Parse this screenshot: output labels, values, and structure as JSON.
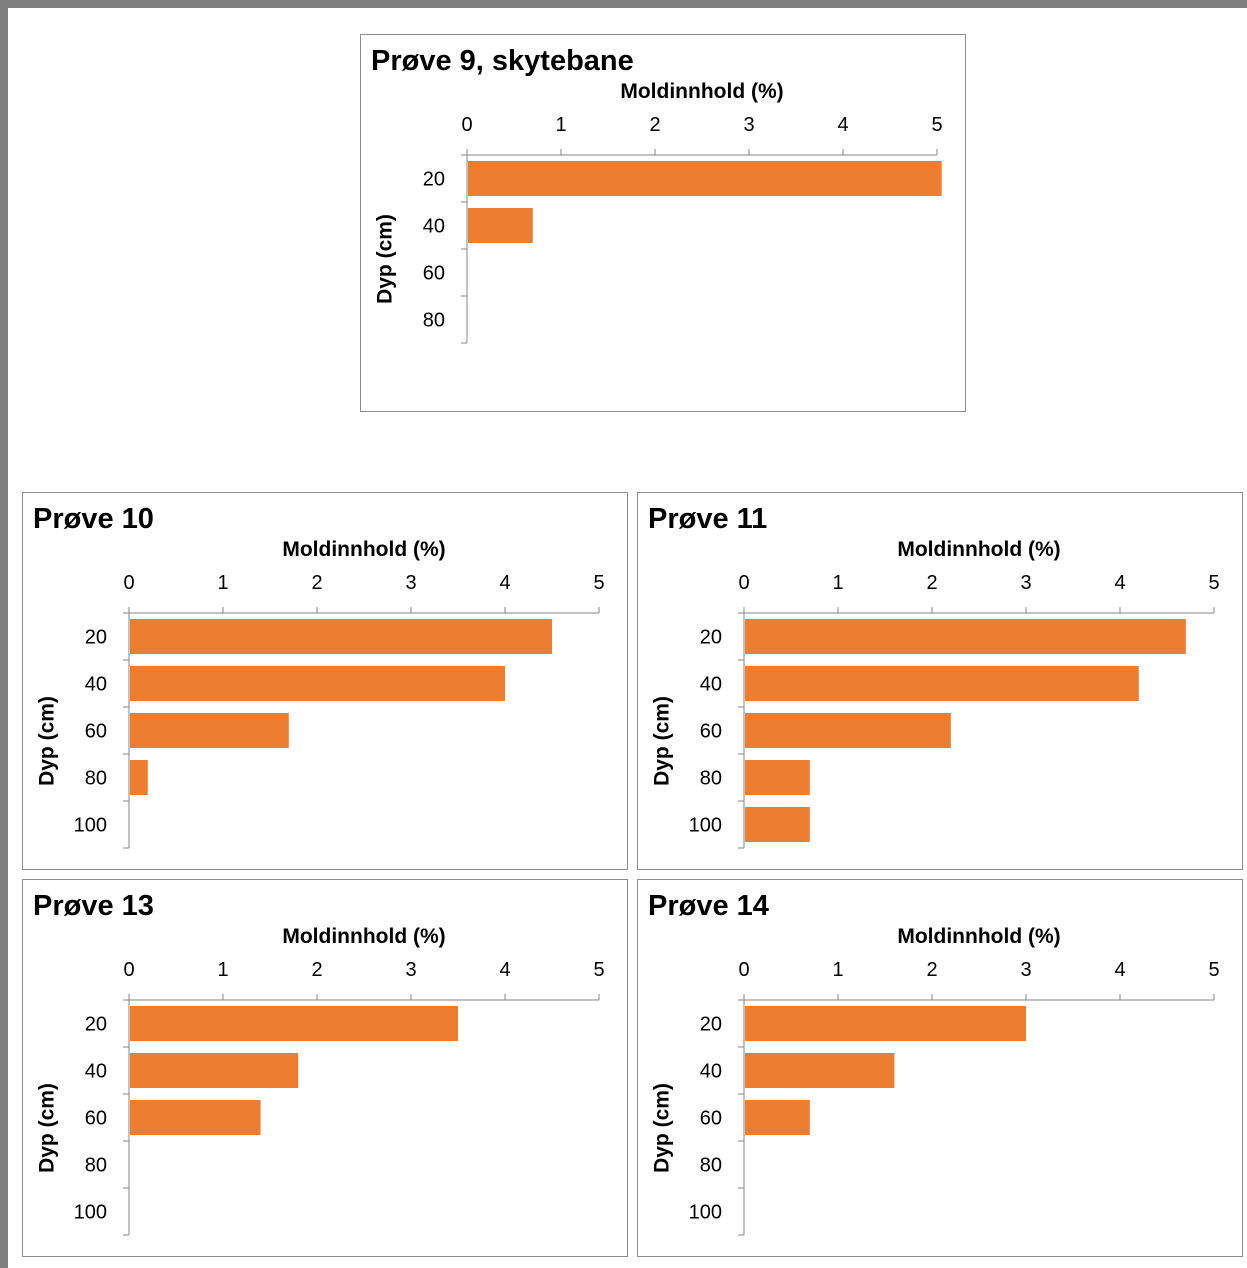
{
  "colors": {
    "bar": "#ED7D31",
    "axis": "#868686",
    "frame": "#7f7f7f"
  },
  "chart_data": [
    {
      "type": "bar",
      "orientation": "horizontal",
      "title": "Prøve 9, skytebane",
      "xlabel": "Moldinnhold (%)",
      "ylabel": "Dyp (cm)",
      "categories": [
        "20",
        "40",
        "60",
        "80"
      ],
      "values": [
        5.05,
        0.7,
        0,
        0
      ],
      "xlim": [
        0,
        5
      ],
      "xticks": [
        "0",
        "1",
        "2",
        "3",
        "4",
        "5"
      ],
      "x_axis_position": "top",
      "grid": false,
      "legend": "none"
    },
    {
      "type": "bar",
      "orientation": "horizontal",
      "title": "Prøve 10",
      "xlabel": "Moldinnhold (%)",
      "ylabel": "Dyp (cm)",
      "categories": [
        "20",
        "40",
        "60",
        "80",
        "100"
      ],
      "values": [
        4.5,
        4.0,
        1.7,
        0.2,
        0
      ],
      "xlim": [
        0,
        5
      ],
      "xticks": [
        "0",
        "1",
        "2",
        "3",
        "4",
        "5"
      ],
      "x_axis_position": "top",
      "grid": false,
      "legend": "none"
    },
    {
      "type": "bar",
      "orientation": "horizontal",
      "title": "Prøve 11",
      "xlabel": "Moldinnhold (%)",
      "ylabel": "Dyp (cm)",
      "categories": [
        "20",
        "40",
        "60",
        "80",
        "100"
      ],
      "values": [
        4.7,
        4.2,
        2.2,
        0.7,
        0.7
      ],
      "xlim": [
        0,
        5
      ],
      "xticks": [
        "0",
        "1",
        "2",
        "3",
        "4",
        "5"
      ],
      "x_axis_position": "top",
      "grid": false,
      "legend": "none"
    },
    {
      "type": "bar",
      "orientation": "horizontal",
      "title": "Prøve 13",
      "xlabel": "Moldinnhold (%)",
      "ylabel": "Dyp (cm)",
      "categories": [
        "20",
        "40",
        "60",
        "80",
        "100"
      ],
      "values": [
        3.5,
        1.8,
        1.4,
        0,
        0
      ],
      "xlim": [
        0,
        5
      ],
      "xticks": [
        "0",
        "1",
        "2",
        "3",
        "4",
        "5"
      ],
      "x_axis_position": "top",
      "grid": false,
      "legend": "none"
    },
    {
      "type": "bar",
      "orientation": "horizontal",
      "title": "Prøve 14",
      "xlabel": "Moldinnhold (%)",
      "ylabel": "Dyp (cm)",
      "categories": [
        "20",
        "40",
        "60",
        "80",
        "100"
      ],
      "values": [
        3.0,
        1.6,
        0.7,
        0,
        0
      ],
      "xlim": [
        0,
        5
      ],
      "xticks": [
        "0",
        "1",
        "2",
        "3",
        "4",
        "5"
      ],
      "x_axis_position": "top",
      "grid": false,
      "legend": "none"
    }
  ]
}
